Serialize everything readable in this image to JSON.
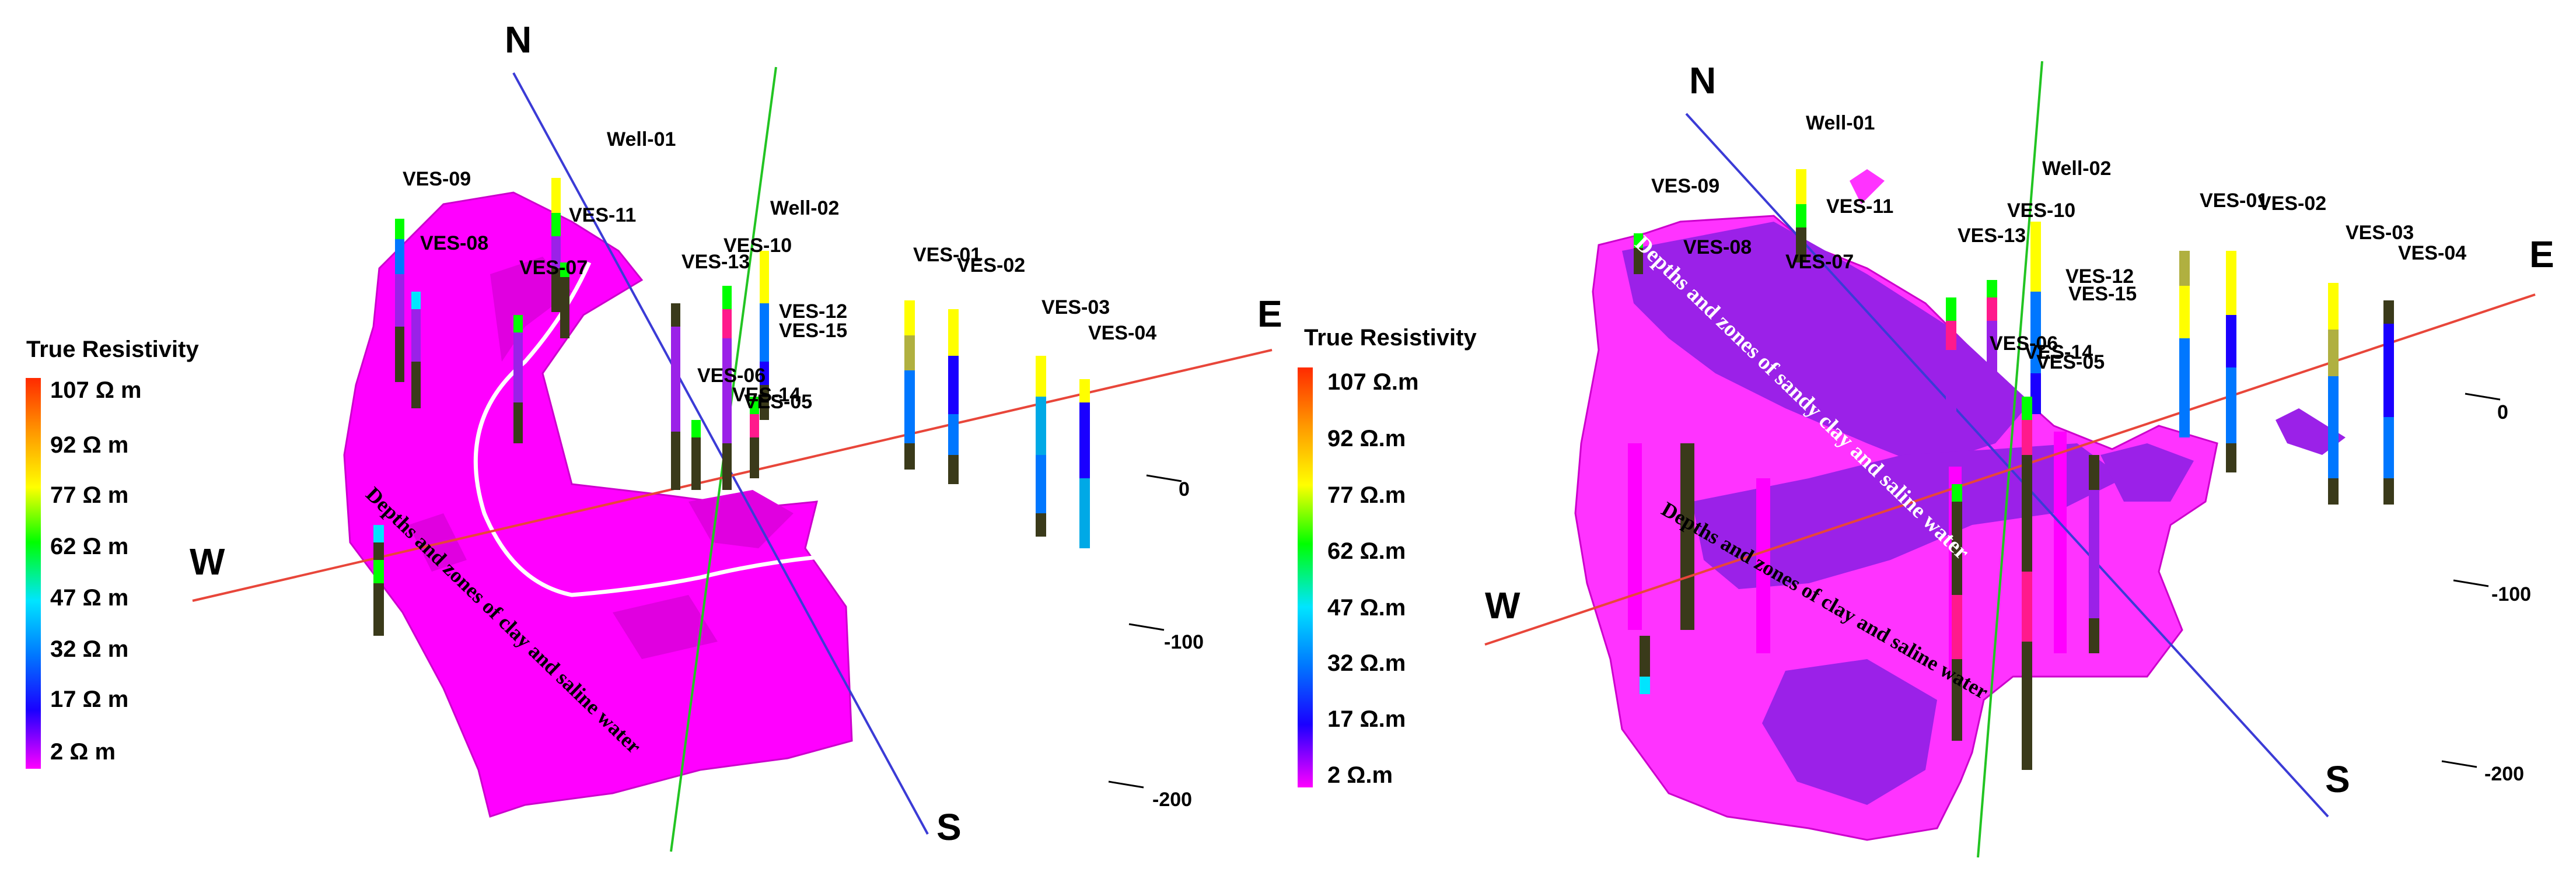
{
  "legend": {
    "title": "True Resistivity",
    "left_ticks": [
      "107 Ω m",
      "92 Ω m",
      "77 Ω m",
      "62 Ω m",
      "47 Ω m",
      "32 Ω m",
      "17 Ω m",
      "2 Ω m"
    ],
    "right_ticks": [
      "107 Ω.m",
      "92 Ω.m",
      "77 Ω.m",
      "62 Ω.m",
      "47 Ω.m",
      "32 Ω.m",
      "17 Ω.m",
      "2 Ω.m"
    ],
    "colors": [
      "#ff2a00",
      "#ff9900",
      "#ffff00",
      "#00ff00",
      "#00e5ff",
      "#0077ff",
      "#1a00ff",
      "#ff00ff"
    ]
  },
  "compass": {
    "north": "N",
    "south": "S",
    "east": "E",
    "west": "W"
  },
  "depth_ticks": [
    "0",
    "-100",
    "-200"
  ],
  "left_panel": {
    "labels": [
      "Well-01",
      "VES-09",
      "VES-11",
      "VES-08",
      "VES-07",
      "Well-02",
      "VES-10",
      "VES-13",
      "VES-12",
      "VES-15",
      "VES-01",
      "VES-02",
      "VES-03",
      "VES-04",
      "VES-06",
      "VES-14",
      "VES-05"
    ],
    "annotation": "Depths and zones of clay and saline water"
  },
  "right_panel": {
    "labels": [
      "Well-01",
      "VES-09",
      "VES-11",
      "Well-02",
      "VES-08",
      "VES-07",
      "VES-10",
      "VES-13",
      "VES-12",
      "VES-15",
      "VES-01",
      "VES-02",
      "VES-03",
      "VES-04",
      "VES-06",
      "VES-14",
      "VES-05"
    ],
    "annotation_top": "Depths and zones of sandy clay and saline water",
    "annotation_bottom": "Depths and zones of clay and saline water"
  },
  "colors": {
    "magenta": "#ff00ff",
    "purple": "#9b21e8",
    "north_south_axis": "#3b3bd6",
    "green_axis": "#22c422",
    "east_west_axis": "#e8463a"
  }
}
